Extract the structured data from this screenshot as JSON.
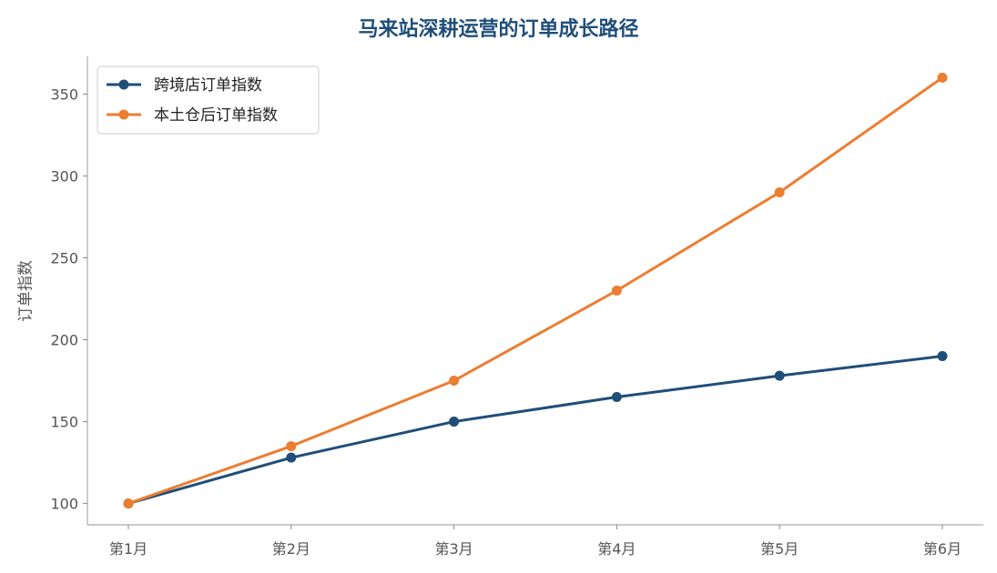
{
  "chart_data": {
    "type": "line",
    "title": "马来站深耕运营的订单成长路径",
    "xlabel": "",
    "ylabel": "订单指数",
    "categories": [
      "第1月",
      "第2月",
      "第3月",
      "第4月",
      "第5月",
      "第6月"
    ],
    "ylim": [
      87,
      373
    ],
    "yticks": [
      100,
      150,
      200,
      250,
      300,
      350
    ],
    "grid": false,
    "legend_position": "top-left",
    "series": [
      {
        "name": "跨境店订单指数",
        "color": "#1f4e79",
        "values": [
          100,
          128,
          150,
          165,
          178,
          190
        ]
      },
      {
        "name": "本土仓后订单指数",
        "color": "#ed7d31",
        "values": [
          100,
          135,
          175,
          230,
          290,
          360
        ]
      }
    ]
  }
}
